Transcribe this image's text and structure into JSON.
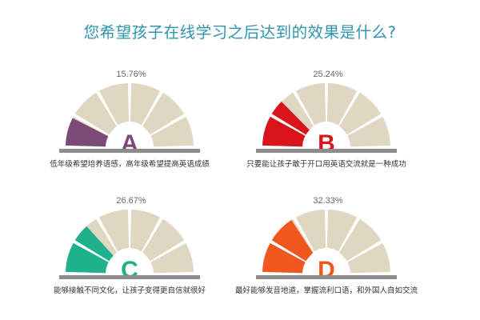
{
  "title": "您希望孩子在线学习之后达到的效果是什么?",
  "colors": {
    "title": "#2e93ad",
    "inactive_segment": "#e0d7c3",
    "base_bar": "#8c8c8c",
    "percent_text": "#666666",
    "caption_text": "#333333"
  },
  "chart_data": [
    {
      "type": "gauge",
      "letter": "A",
      "value_label": "15.76%",
      "value": 15.76,
      "segments_total": 6,
      "caption": "低年级希望培养语感，高年级希望提高英语成绩",
      "color": "#7b4a76"
    },
    {
      "type": "gauge",
      "letter": "B",
      "value_label": "25.24%",
      "value": 25.24,
      "segments_total": 6,
      "caption": "只要能让孩子敢于开口用英语交流就是一种成功",
      "color": "#d9141b"
    },
    {
      "type": "gauge",
      "letter": "C",
      "value_label": "26.67%",
      "value": 26.67,
      "segments_total": 6,
      "caption": "能够接触不同文化，让孩子变得更自信就很好",
      "color": "#1fb08c"
    },
    {
      "type": "gauge",
      "letter": "D",
      "value_label": "32.33%",
      "value": 32.33,
      "segments_total": 6,
      "caption": "最好能够发音地道，掌握流利口语，和外国人自如交流",
      "color": "#f0571e"
    }
  ]
}
